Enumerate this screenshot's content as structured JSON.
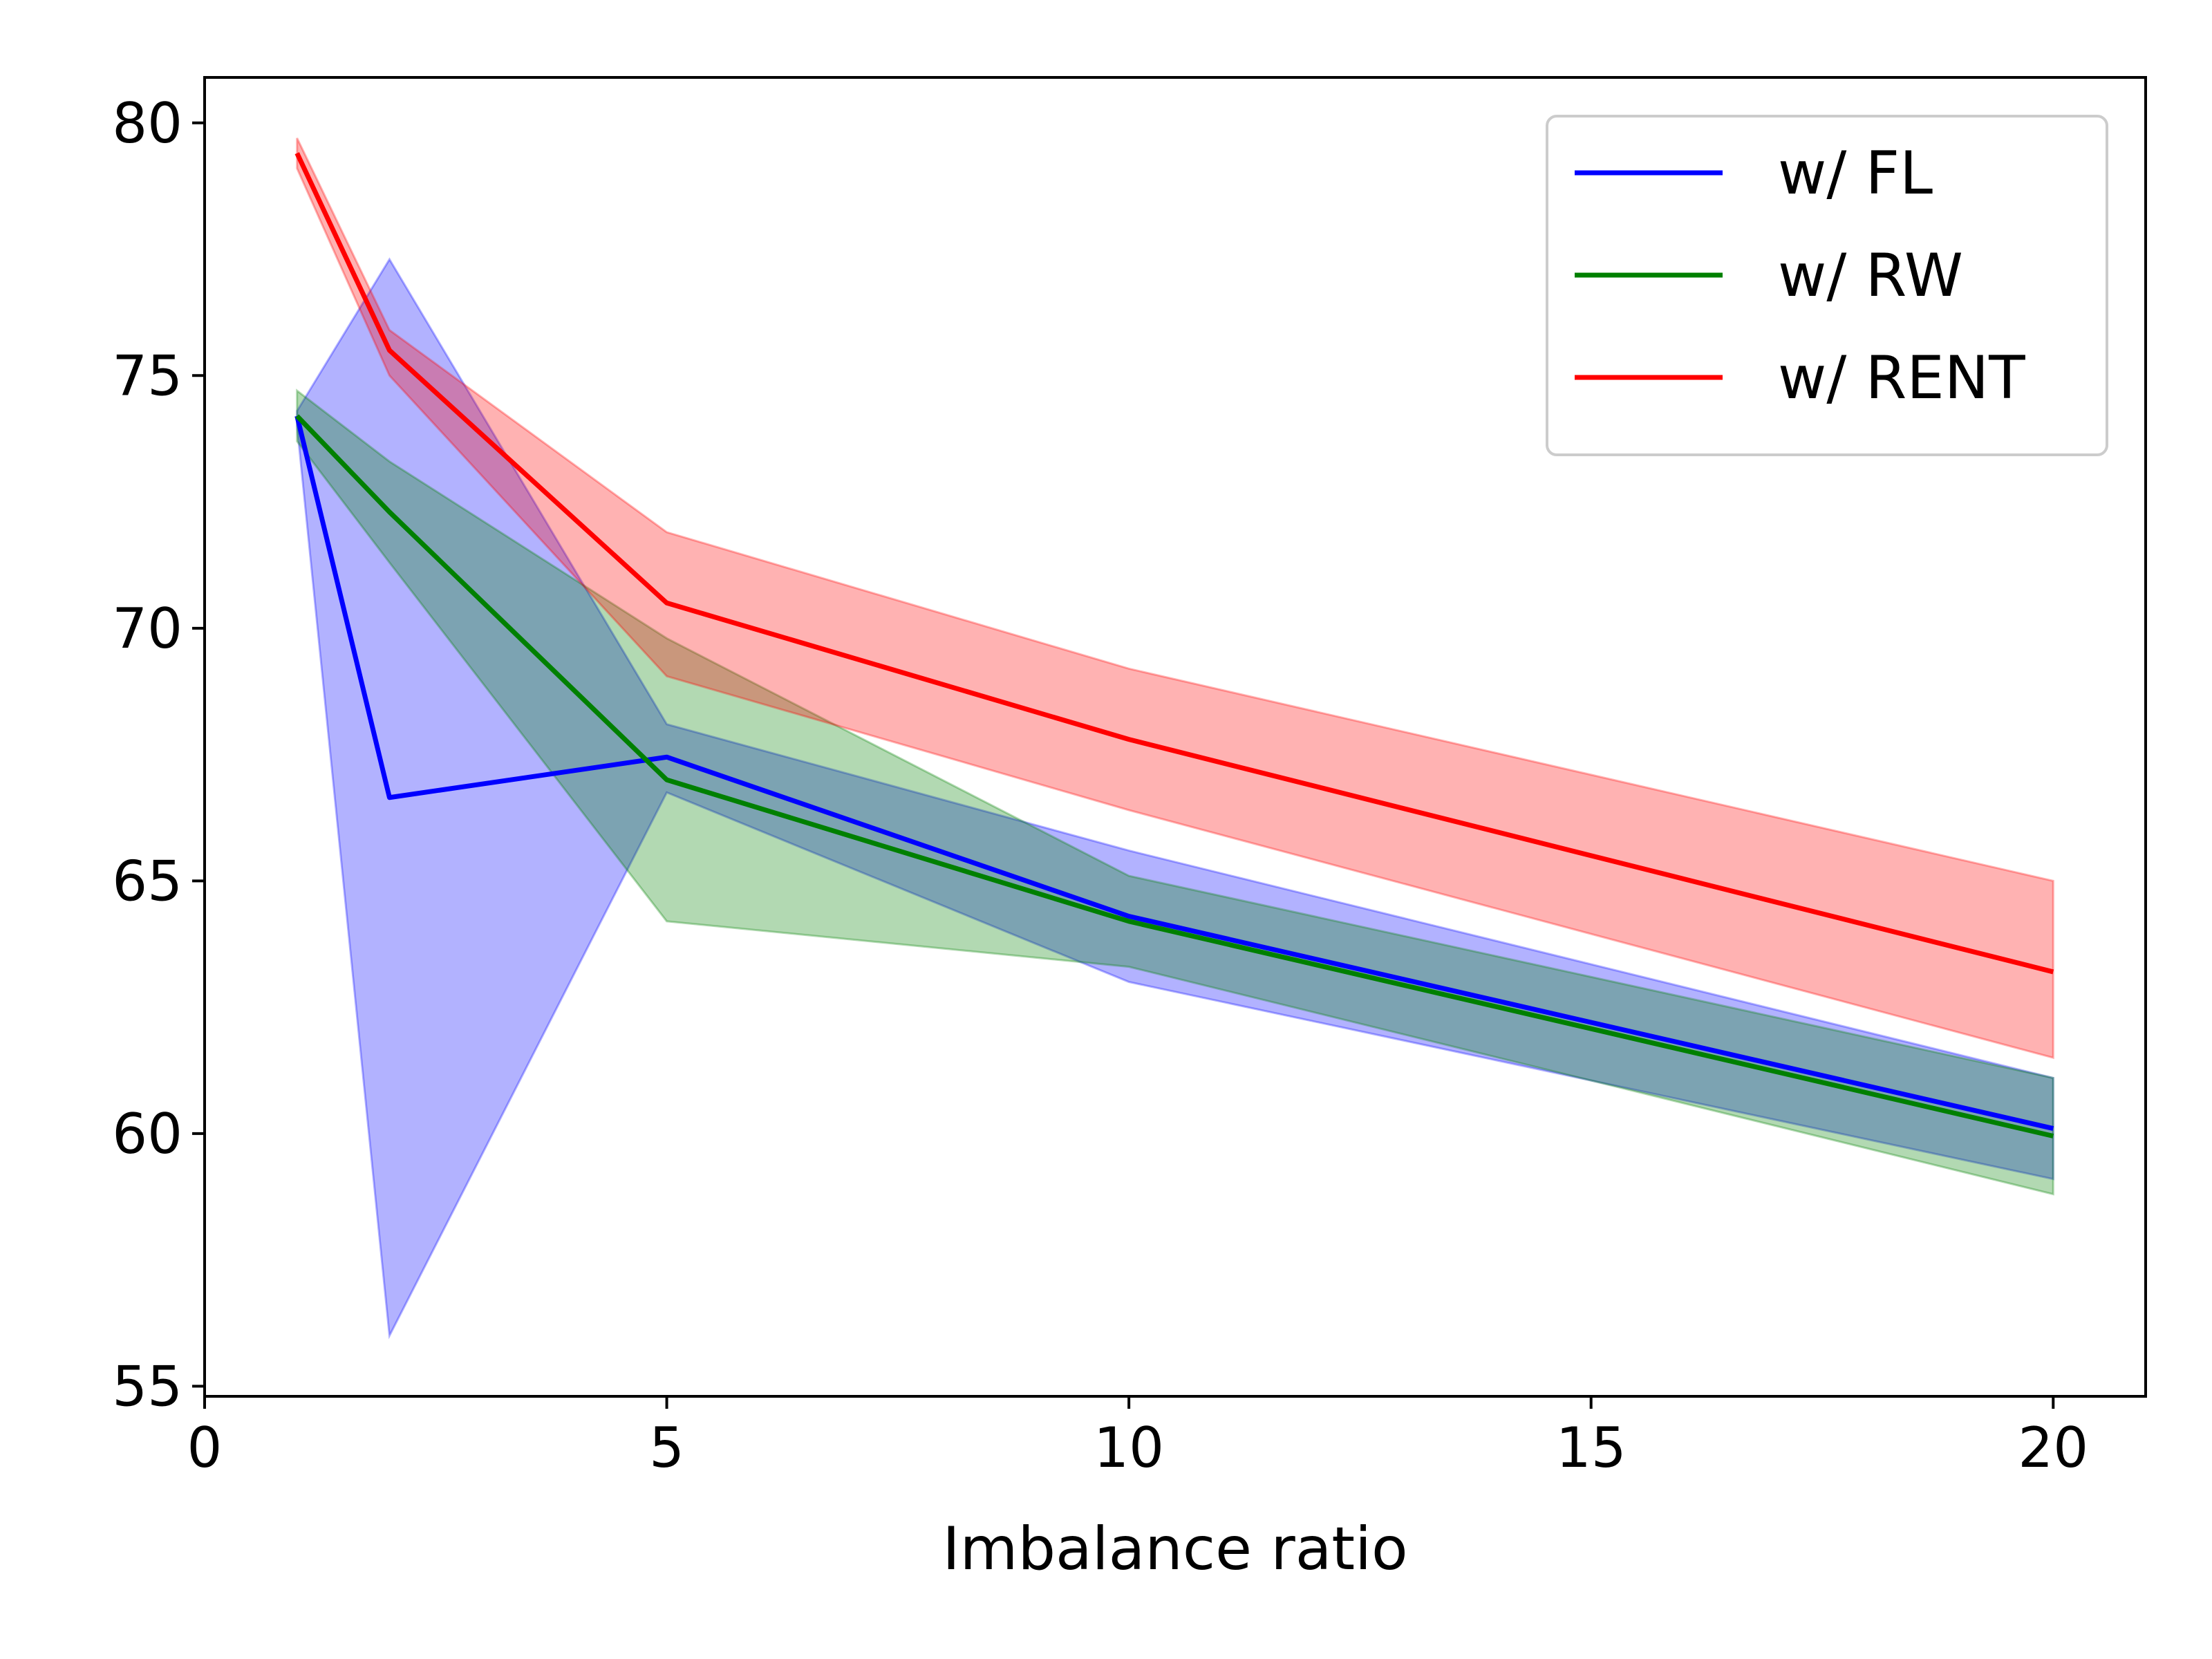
{
  "chart_data": {
    "type": "line",
    "title": "",
    "xlabel": "Imbalance ratio",
    "ylabel": "",
    "xlim": [
      0,
      21
    ],
    "ylim": [
      54.8,
      80.9
    ],
    "x_ticks": [
      0,
      5,
      10,
      15,
      20
    ],
    "x_tick_labels": [
      "0",
      "5",
      "10",
      "15",
      "20"
    ],
    "y_ticks": [
      55,
      60,
      65,
      70,
      75,
      80
    ],
    "y_tick_labels": [
      "55",
      "60",
      "65",
      "70",
      "75",
      "80"
    ],
    "grid": false,
    "legend_position": "top-right",
    "x": [
      1,
      2,
      5,
      10,
      20
    ],
    "series": [
      {
        "name": "w/ FL",
        "color": "#0000ff",
        "values": [
          74.2,
          66.65,
          67.45,
          64.3,
          60.1
        ],
        "lower": [
          74.0,
          56.0,
          66.75,
          63.0,
          59.1
        ],
        "upper": [
          74.3,
          77.3,
          68.1,
          65.6,
          61.1
        ]
      },
      {
        "name": "w/ RW",
        "color": "#008000",
        "values": [
          74.2,
          72.3,
          67.0,
          64.2,
          59.95
        ],
        "lower": [
          73.7,
          71.3,
          64.2,
          63.3,
          58.8
        ],
        "upper": [
          74.7,
          73.3,
          69.8,
          65.1,
          61.1
        ]
      },
      {
        "name": "w/ RENT",
        "color": "#ff0000",
        "values": [
          79.4,
          75.5,
          70.5,
          67.8,
          63.2
        ],
        "lower": [
          79.1,
          75.0,
          69.05,
          66.4,
          61.5
        ],
        "upper": [
          79.7,
          75.9,
          71.9,
          69.2,
          65.0
        ]
      }
    ]
  }
}
